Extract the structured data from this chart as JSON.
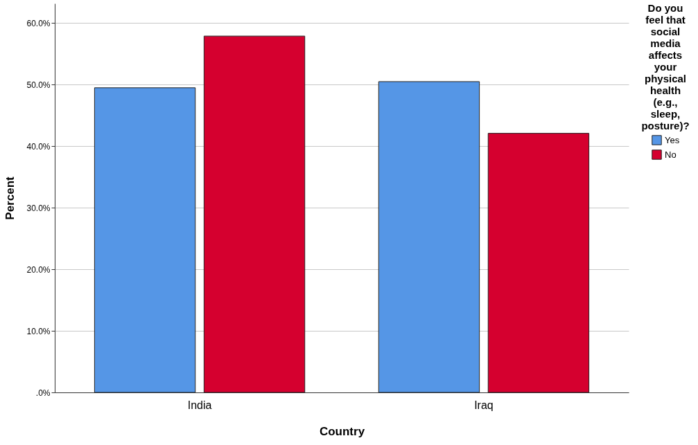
{
  "chart_data": {
    "type": "bar",
    "xlabel": "Country",
    "ylabel": "Percent",
    "legend_title": "Do you feel that social media affects your physical health (e.g., sleep, posture)?",
    "categories": [
      "India",
      "Iraq"
    ],
    "series": [
      {
        "name": "Yes",
        "color": "#5596e6",
        "values": [
          49.5,
          50.5
        ]
      },
      {
        "name": "No",
        "color": "#d5002f",
        "values": [
          57.9,
          42.1
        ]
      }
    ],
    "ylim": [
      0,
      63.2
    ],
    "yticks": [
      {
        "value": 0,
        "label": ".0%"
      },
      {
        "value": 10,
        "label": "10.0%"
      },
      {
        "value": 20,
        "label": "20.0%"
      },
      {
        "value": 30,
        "label": "30.0%"
      },
      {
        "value": 40,
        "label": "40.0%"
      },
      {
        "value": 50,
        "label": "50.0%"
      },
      {
        "value": 60,
        "label": "60.0%"
      }
    ],
    "grid": "y",
    "legend": "top right"
  }
}
